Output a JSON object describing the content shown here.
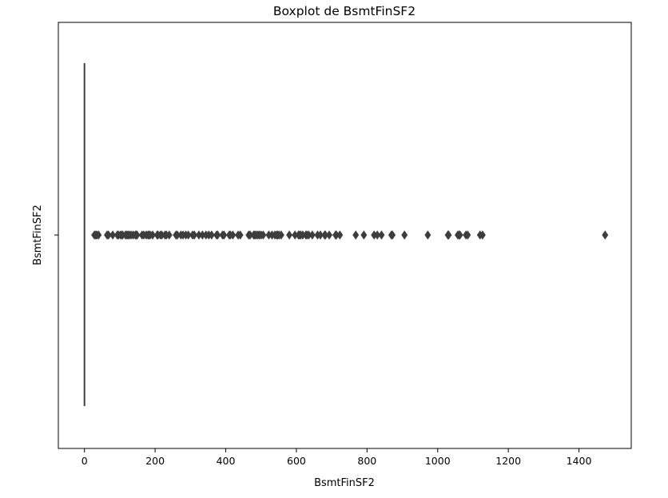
{
  "chart_data": {
    "type": "boxplot",
    "orientation": "horizontal",
    "title": "Boxplot de BsmtFinSF2",
    "xlabel": "BsmtFinSF2",
    "ylabel": "BsmtFinSF2",
    "xlim": [
      -74,
      1548
    ],
    "x_ticks": [
      0,
      200,
      400,
      600,
      800,
      1000,
      1200,
      1400
    ],
    "x_tick_labels": [
      "0",
      "200",
      "400",
      "600",
      "800",
      "1000",
      "1200",
      "1400"
    ],
    "box": {
      "q1": 0,
      "median": 0,
      "q3": 0,
      "whisker_low": 0,
      "whisker_high": 0
    },
    "outliers": [
      28,
      32,
      35,
      40,
      64,
      68,
      80,
      93,
      96,
      102,
      106,
      108,
      116,
      120,
      123,
      127,
      132,
      138,
      144,
      147,
      149,
      163,
      168,
      175,
      180,
      182,
      186,
      193,
      206,
      208,
      215,
      219,
      228,
      232,
      240,
      259,
      263,
      273,
      279,
      287,
      294,
      306,
      311,
      324,
      334,
      344,
      352,
      360,
      374,
      377,
      391,
      395,
      410,
      413,
      420,
      435,
      441,
      465,
      469,
      479,
      482,
      486,
      491,
      495,
      500,
      506,
      522,
      531,
      539,
      544,
      547,
      551,
      557,
      580,
      596,
      606,
      609,
      612,
      618,
      627,
      630,
      635,
      645,
      660,
      668,
      680,
      682,
      693,
      711,
      713,
      723,
      768,
      791,
      820,
      829,
      841,
      869,
      872,
      906,
      972,
      1029,
      1031,
      1057,
      1061,
      1063,
      1080,
      1085,
      1120,
      1127,
      1474
    ]
  }
}
